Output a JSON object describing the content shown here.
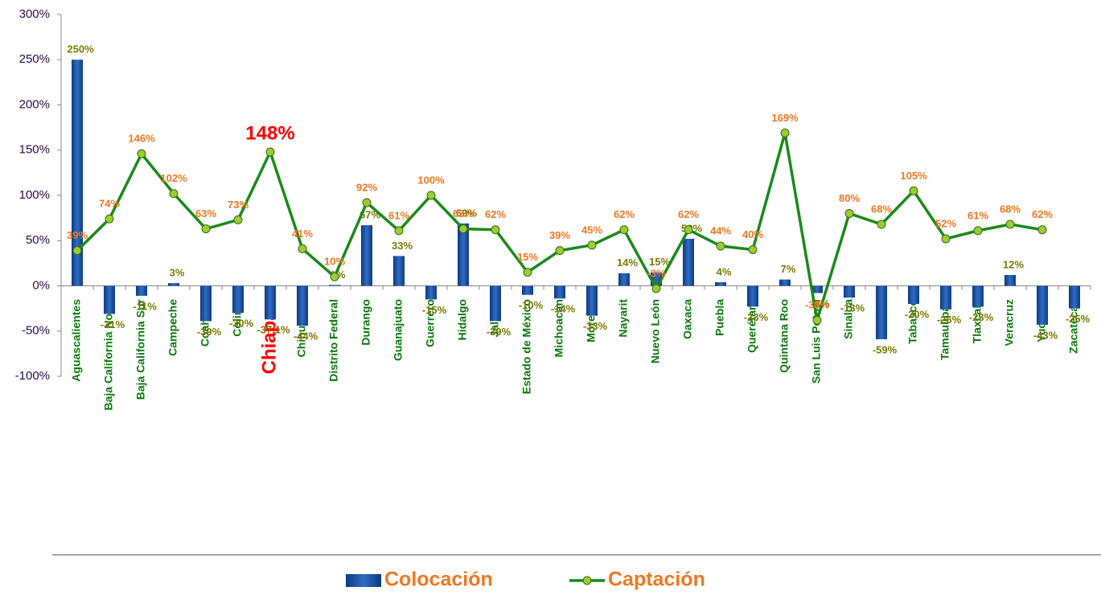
{
  "chart_data": {
    "type": "bar_line",
    "categories": [
      "Aguascalientes",
      "Baja California Norte",
      "Baja California Sur",
      "Campeche",
      "Coahuila",
      "Colima",
      "Chiapas",
      "Chihuahua",
      "Distrito Federal",
      "Durango",
      "Guanajuato",
      "Guerrero",
      "Hidalgo",
      "Jalisco",
      "Estado de México",
      "Michoacán",
      "Morelos",
      "Nayarit",
      "Nuevo León",
      "Oaxaca",
      "Puebla",
      "Querétaro",
      "Quintana Roo",
      "San Luis Potosí",
      "Sinaloa",
      "Sonora",
      "Tabasco",
      "Tamaulipas",
      "Tlaxcala",
      "Veracruz",
      "Yucatán",
      "Zacatecas"
    ],
    "series": [
      {
        "name": "Colocación",
        "type": "bar",
        "color": "#1f4e9a",
        "values": [
          250,
          -31,
          -11,
          3,
          -39,
          -30,
          -37.1,
          -44,
          1,
          67,
          33,
          -15,
          69,
          -39,
          -10,
          -14,
          -33,
          14,
          15,
          52,
          4,
          -23,
          7,
          -8,
          -13,
          -59,
          -20,
          -26,
          -23,
          12,
          -43,
          -25
        ],
        "value_labels": [
          "250%",
          "-31%",
          "-11%",
          "3%",
          "-39%",
          "-30%",
          "-37.1%",
          "-44%",
          "1%",
          "67%",
          "33%",
          "-15%",
          "69%",
          "-39%",
          "-10%",
          "-14%",
          "-33%",
          "14%",
          "15%",
          "52%",
          "4%",
          "-23%",
          "7%",
          "-8%",
          "-13%",
          "-59%",
          "-20%",
          "-26%",
          "-23%",
          "12%",
          "-43%",
          "-25%"
        ],
        "label_color": "#7a7a00"
      },
      {
        "name": "Captación",
        "type": "line",
        "color": "#1a8a1a",
        "values": [
          39,
          74,
          146,
          102,
          63,
          73,
          148,
          41,
          10,
          92,
          61,
          100,
          63,
          62,
          15,
          39,
          45,
          62,
          -3,
          62,
          44,
          40,
          169,
          -38,
          80,
          68,
          105,
          52,
          61,
          68,
          62,
          null
        ],
        "value_labels": [
          "39%",
          "74%",
          "146%",
          "102%",
          "63%",
          "73%",
          "148%",
          "41%",
          "10%",
          "92%",
          "61%",
          "100%",
          "63%",
          "62%",
          "15%",
          "39%",
          "45%",
          "62%",
          "-3%",
          "62%",
          "44%",
          "40%",
          "169%",
          "-38%",
          "80%",
          "68%",
          "105%",
          "52%",
          "61%",
          "68%",
          "62%",
          null
        ],
        "label_color": "#f07820"
      }
    ],
    "highlight": "Chiapas",
    "highlight_color": "#ff0000",
    "ylim": [
      -100,
      300
    ],
    "yticks": [
      {
        "value": -100,
        "label": "-100%"
      },
      {
        "value": -50,
        "label": "-50%"
      },
      {
        "value": 0,
        "label": "0%"
      },
      {
        "value": 50,
        "label": "50%"
      },
      {
        "value": 100,
        "label": "100%"
      },
      {
        "value": 150,
        "label": "150%"
      },
      {
        "value": 200,
        "label": "200%"
      },
      {
        "value": 250,
        "label": "250%"
      },
      {
        "value": 300,
        "label": "300%"
      }
    ]
  }
}
